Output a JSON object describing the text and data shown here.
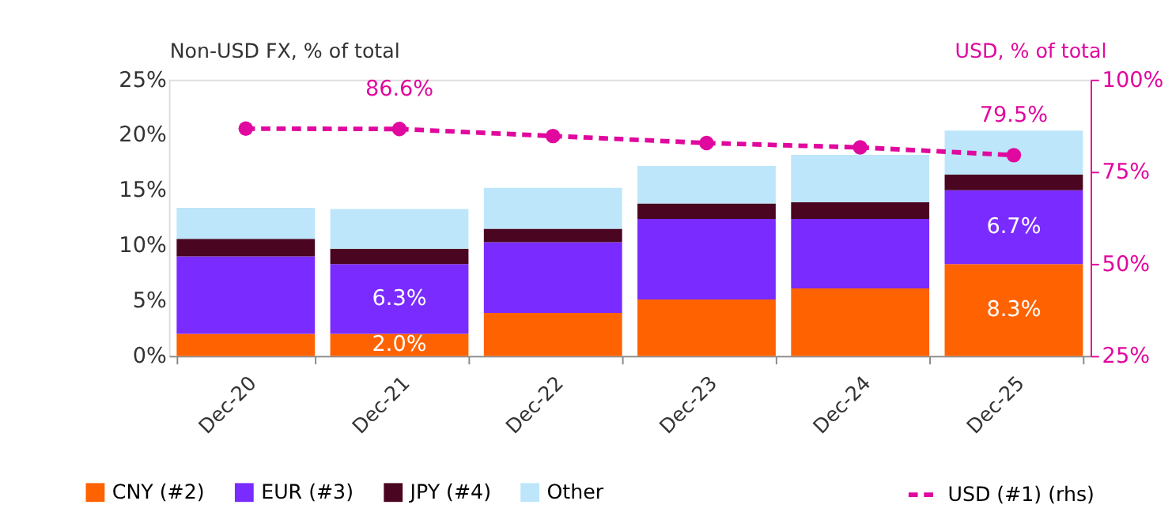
{
  "chart_data": {
    "type": "bar",
    "stacked": true,
    "ylabel": "Non-USD FX, % of total",
    "y2label": "USD, % of total",
    "categories": [
      "Dec-20",
      "Dec-21",
      "Dec-22",
      "Dec-23",
      "Dec-24",
      "Dec-25"
    ],
    "series": [
      {
        "name": "CNY (#2)",
        "color": "#ff6200",
        "values": [
          2.0,
          2.0,
          3.9,
          5.1,
          6.1,
          8.3
        ],
        "value_labels": [
          null,
          "2.0%",
          null,
          null,
          null,
          "8.3%"
        ]
      },
      {
        "name": "EUR (#3)",
        "color": "#7a2bff",
        "values": [
          7.0,
          6.3,
          6.4,
          7.3,
          6.3,
          6.7
        ],
        "value_labels": [
          null,
          "6.3%",
          null,
          null,
          null,
          "6.7%"
        ]
      },
      {
        "name": "JPY (#4)",
        "color": "#4a0520",
        "values": [
          1.6,
          1.4,
          1.2,
          1.4,
          1.5,
          1.4
        ]
      },
      {
        "name": "Other",
        "color": "#bde6fa",
        "values": [
          2.8,
          3.6,
          3.7,
          3.4,
          4.3,
          4.0
        ]
      },
      {
        "name": "USD (#1) (rhs)",
        "type": "line",
        "axis": "y2",
        "color": "#e0089e",
        "marker": "circle",
        "line_style": "dashed",
        "values": [
          86.7,
          86.6,
          84.7,
          82.8,
          81.6,
          79.5
        ],
        "value_labels": [
          null,
          "86.6%",
          null,
          null,
          null,
          "79.5%"
        ]
      }
    ],
    "ylim": [
      0,
      25
    ],
    "yticks": [
      {
        "value": 0,
        "label": "0%"
      },
      {
        "value": 5,
        "label": "5%"
      },
      {
        "value": 10,
        "label": "10%"
      },
      {
        "value": 15,
        "label": "15%"
      },
      {
        "value": 20,
        "label": "20%"
      },
      {
        "value": 25,
        "label": "25%"
      }
    ],
    "y2lim": [
      25,
      100
    ],
    "y2ticks": [
      {
        "value": 25,
        "label": "25%"
      },
      {
        "value": 50,
        "label": "50%"
      },
      {
        "value": 75,
        "label": "75%"
      },
      {
        "value": 100,
        "label": "100%"
      }
    ],
    "grid": false,
    "legend": "bottom"
  }
}
